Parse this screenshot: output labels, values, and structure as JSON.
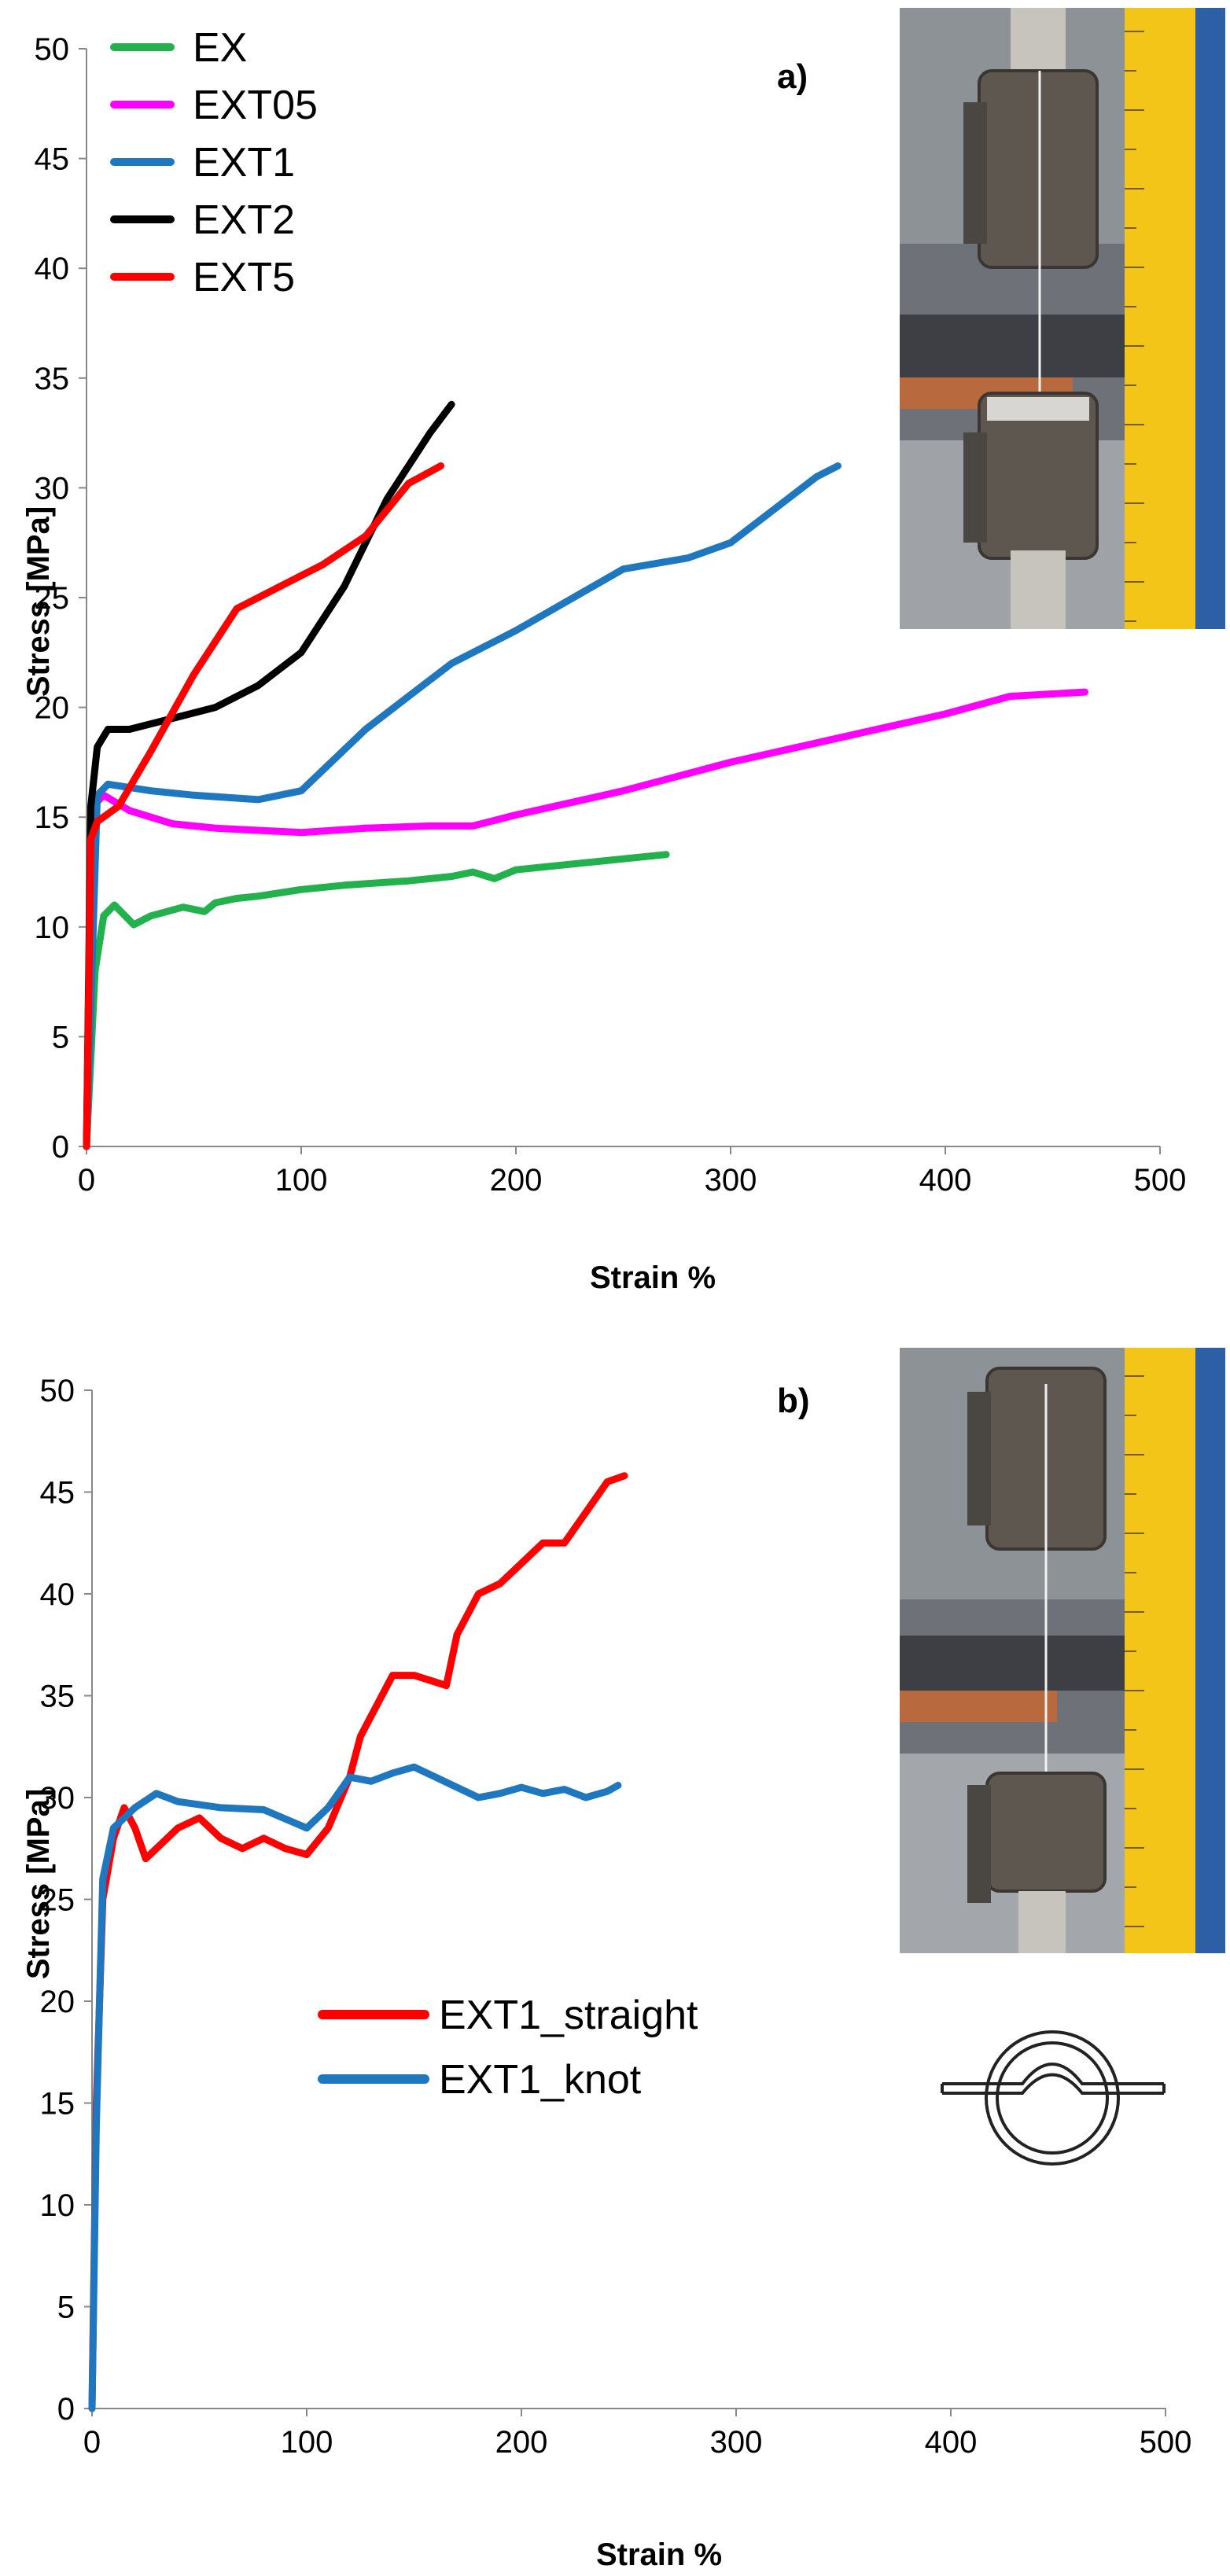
{
  "chart_data": [
    {
      "type": "line",
      "panel_label": "a)",
      "xlabel": "Strain  %",
      "ylabel": "Stress [MPa]",
      "xlim": [
        0,
        500
      ],
      "ylim": [
        0,
        50
      ],
      "xticks": [
        "0",
        "100",
        "200",
        "300",
        "400",
        "500"
      ],
      "yticks": [
        "0",
        "5",
        "10",
        "15",
        "20",
        "25",
        "30",
        "35",
        "40",
        "45",
        "50"
      ],
      "legend_position": "top-left",
      "grid": false,
      "series": [
        {
          "name": "EX",
          "color": "#22b14c",
          "x": [
            0,
            4,
            8,
            13,
            17,
            22,
            30,
            45,
            55,
            60,
            70,
            80,
            100,
            120,
            150,
            170,
            180,
            190,
            200,
            230,
            270
          ],
          "y": [
            0,
            8,
            10.5,
            11,
            10.6,
            10.1,
            10.5,
            10.9,
            10.7,
            11.1,
            11.3,
            11.4,
            11.7,
            11.9,
            12.1,
            12.3,
            12.5,
            12.2,
            12.6,
            12.9,
            13.3
          ]
        },
        {
          "name": "EXT05",
          "color": "#ff00ff",
          "x": [
            0,
            3,
            8,
            20,
            40,
            60,
            80,
            100,
            130,
            160,
            180,
            200,
            250,
            300,
            350,
            400,
            430,
            465
          ],
          "y": [
            0,
            15.5,
            16,
            15.3,
            14.7,
            14.5,
            14.4,
            14.3,
            14.5,
            14.6,
            14.6,
            15.1,
            16.2,
            17.5,
            18.6,
            19.7,
            20.5,
            20.7
          ]
        },
        {
          "name": "EXT1",
          "color": "#1f77c0",
          "x": [
            0,
            5,
            10,
            30,
            50,
            80,
            100,
            130,
            150,
            170,
            200,
            250,
            280,
            300,
            320,
            340,
            350
          ],
          "y": [
            0,
            16,
            16.5,
            16.2,
            16,
            15.8,
            16.2,
            19,
            20.5,
            22,
            23.5,
            26.3,
            26.8,
            27.5,
            29,
            30.5,
            31
          ]
        },
        {
          "name": "EXT2",
          "color": "#000000",
          "x": [
            0,
            2,
            5,
            10,
            20,
            40,
            60,
            80,
            100,
            120,
            140,
            160,
            170
          ],
          "y": [
            0,
            15.5,
            18.2,
            19,
            19,
            19.5,
            20,
            21,
            22.5,
            25.5,
            29.5,
            32.5,
            33.8
          ]
        },
        {
          "name": "EXT5",
          "color": "#ff0000",
          "x": [
            0,
            2,
            5,
            15,
            30,
            50,
            70,
            90,
            110,
            130,
            150,
            165
          ],
          "y": [
            0,
            14,
            14.8,
            15.5,
            18,
            21.5,
            24.5,
            25.5,
            26.5,
            27.8,
            30.2,
            31
          ]
        }
      ]
    },
    {
      "type": "line",
      "panel_label": "b)",
      "xlabel": "Strain %",
      "ylabel": "Stress [MPa]",
      "xlim": [
        0,
        500
      ],
      "ylim": [
        0,
        50
      ],
      "xticks": [
        "0",
        "100",
        "200",
        "300",
        "400",
        "500"
      ],
      "yticks": [
        "0",
        "5",
        "10",
        "15",
        "20",
        "25",
        "30",
        "35",
        "40",
        "45",
        "50"
      ],
      "legend_position": "center-left",
      "grid": false,
      "series": [
        {
          "name": "EXT1_straight",
          "color": "#ff0000",
          "x": [
            0,
            2,
            5,
            10,
            15,
            20,
            25,
            30,
            40,
            50,
            60,
            70,
            80,
            90,
            100,
            110,
            120,
            125,
            130,
            140,
            150,
            165,
            170,
            180,
            190,
            200,
            210,
            220,
            230,
            240,
            248
          ],
          "y": [
            0,
            15,
            25,
            28,
            29.5,
            28.5,
            27,
            27.5,
            28.5,
            29,
            28,
            27.5,
            28,
            27.5,
            27.2,
            28.5,
            31,
            33,
            34,
            36,
            36,
            35.5,
            38,
            40,
            40.5,
            41.5,
            42.5,
            42.5,
            44,
            45.5,
            45.8
          ]
        },
        {
          "name": "EXT1_knot",
          "color": "#1f77c0",
          "x": [
            0,
            2,
            5,
            10,
            20,
            30,
            40,
            60,
            80,
            100,
            110,
            120,
            130,
            140,
            150,
            160,
            170,
            180,
            190,
            200,
            210,
            220,
            230,
            240,
            245
          ],
          "y": [
            0,
            14,
            26,
            28.5,
            29.5,
            30.2,
            29.8,
            29.5,
            29.4,
            28.5,
            29.5,
            31,
            30.8,
            31.2,
            31.5,
            31,
            30.5,
            30,
            30.2,
            30.5,
            30.2,
            30.4,
            30,
            30.3,
            30.6
          ]
        }
      ]
    }
  ]
}
